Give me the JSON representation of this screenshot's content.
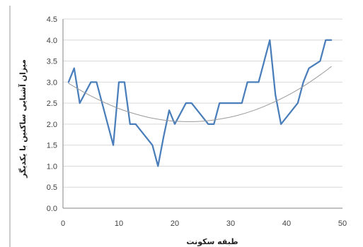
{
  "chart_data": {
    "type": "line",
    "xlabel": "طبقه سکونت",
    "ylabel": "میزان آشنایی ساکنین با یکدیگر",
    "xlim": [
      0,
      50
    ],
    "ylim": [
      0,
      4.5
    ],
    "x_ticks": [
      0,
      10,
      20,
      30,
      40,
      50
    ],
    "y_ticks": [
      "0.0",
      "0.5",
      "1.0",
      "1.5",
      "2.0",
      "2.5",
      "3.0",
      "3.5",
      "4.0",
      "4.5"
    ],
    "grid": "horizontal",
    "series": [
      {
        "kind": "data",
        "color": "#4a7ebb",
        "x": [
          1,
          2,
          3,
          5,
          6,
          8,
          9,
          10,
          11,
          12,
          13,
          16,
          17,
          18,
          19,
          20,
          22,
          23,
          26,
          27,
          28,
          32,
          33,
          35,
          37,
          38,
          39,
          42,
          43,
          44,
          46,
          47,
          48
        ],
        "y": [
          3.0,
          3.33,
          2.5,
          3.0,
          3.0,
          2.0,
          1.5,
          3.0,
          3.0,
          2.0,
          2.0,
          1.5,
          1.0,
          1.7,
          2.33,
          2.0,
          2.5,
          2.5,
          2.0,
          2.0,
          2.5,
          2.5,
          3.0,
          3.0,
          4.0,
          2.7,
          2.0,
          2.5,
          3.0,
          3.33,
          3.5,
          4.0,
          4.0
        ]
      },
      {
        "kind": "trendline",
        "color": "#9a9a9a",
        "x": [
          1,
          4,
          7,
          10,
          13,
          16,
          19,
          22,
          25,
          28,
          31,
          34,
          37,
          40,
          43,
          46,
          48
        ],
        "y": [
          2.97,
          2.74,
          2.54,
          2.37,
          2.24,
          2.14,
          2.08,
          2.06,
          2.07,
          2.12,
          2.2,
          2.32,
          2.48,
          2.67,
          2.9,
          3.17,
          3.37
        ]
      }
    ]
  }
}
